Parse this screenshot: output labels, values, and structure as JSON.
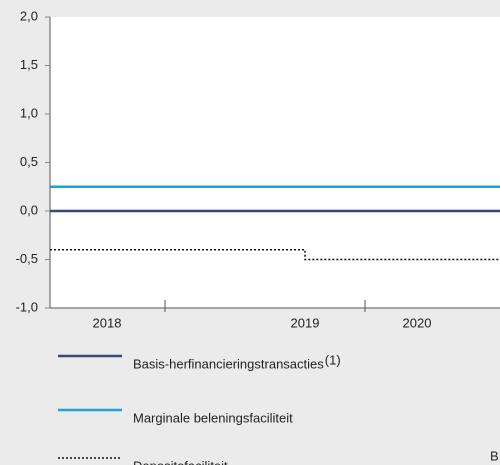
{
  "chart_data": {
    "type": "line",
    "step": "post",
    "x": [
      2018.425,
      2019.7,
      2020.675
    ],
    "xlim": [
      2018.425,
      2020.675
    ],
    "xticks": [
      2019,
      2020
    ],
    "categories": [
      "2018",
      "2019",
      "2020"
    ],
    "ylim": [
      -1,
      2
    ],
    "yticks": [
      {
        "value": -1,
        "label": "-1,0"
      },
      {
        "value": -0.5,
        "label": "-0,5"
      },
      {
        "value": 0,
        "label": "0,0"
      },
      {
        "value": 0.5,
        "label": "0,5"
      },
      {
        "value": 1,
        "label": "1,0"
      },
      {
        "value": 1.5,
        "label": "1,5"
      },
      {
        "value": 2,
        "label": "2,0"
      }
    ],
    "grid": false,
    "legend": "bottom",
    "series": [
      {
        "name": "Basis-herfinancieringstransacties",
        "footnote": "(1)",
        "color": "#3b4778",
        "dash": "solid",
        "values": [
          0,
          0,
          0
        ]
      },
      {
        "name": "Marginale beleningsfaciliteit",
        "color": "#1ba4d3",
        "dash": "solid",
        "values": [
          0.25,
          0.25,
          0.25
        ]
      },
      {
        "name": "Depositofaciliteit",
        "color": "#111111",
        "dash": "dotted",
        "values": [
          -0.4,
          -0.5,
          -0.5
        ]
      }
    ],
    "annotation": "B"
  }
}
